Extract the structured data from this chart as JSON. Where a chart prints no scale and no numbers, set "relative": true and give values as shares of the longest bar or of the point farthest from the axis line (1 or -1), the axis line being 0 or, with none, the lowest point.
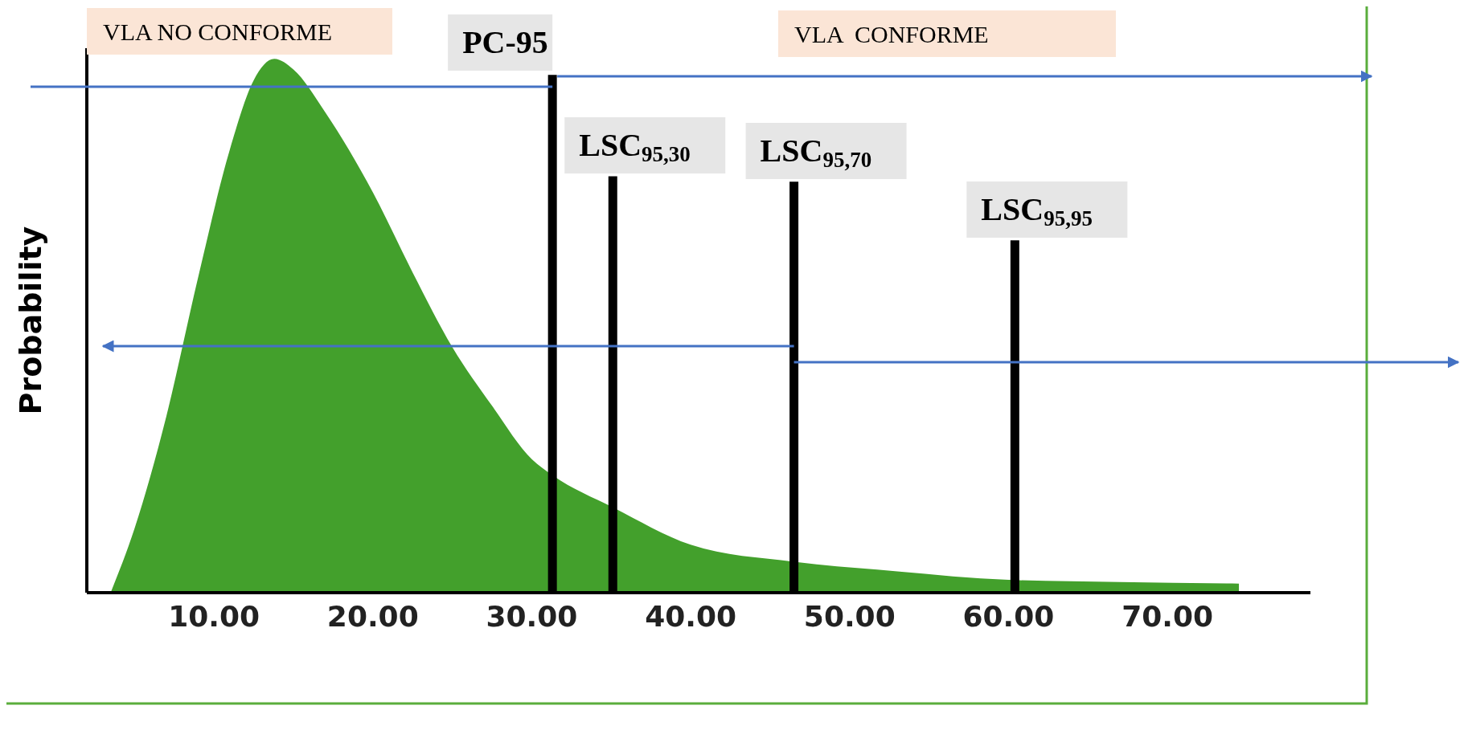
{
  "chart_data": {
    "type": "area",
    "relative": true,
    "ylabel": "Probability",
    "x": [
      3.5,
      5,
      7,
      9,
      11,
      12.5,
      13.8,
      15,
      17,
      20,
      22.5,
      25,
      27.5,
      30,
      31.3,
      35.1,
      40,
      46.5,
      53,
      60,
      67,
      74.5
    ],
    "series": [
      {
        "color": "#43a02c",
        "values": [
          0,
          0.12,
          0.33,
          0.59,
          0.83,
          0.96,
          1,
          0.98,
          0.9,
          0.75,
          0.6,
          0.46,
          0.35,
          0.25,
          0.22,
          0.16,
          0.09,
          0.058,
          0.04,
          0.024,
          0.02,
          0.017
        ]
      }
    ],
    "xlim": [
      2,
      79
    ],
    "xticks": [
      {
        "value": 10,
        "label": "10.00"
      },
      {
        "value": 20,
        "label": "20.00"
      },
      {
        "value": 30,
        "label": "30.00"
      },
      {
        "value": 40,
        "label": "40.00"
      },
      {
        "value": 50,
        "label": "50.00"
      },
      {
        "value": 60,
        "label": "60.00"
      },
      {
        "value": 70,
        "label": "70.00"
      }
    ],
    "ref_lines": [
      {
        "axis": "x",
        "value": 31.3,
        "label": "PC-95",
        "color": "#000000"
      },
      {
        "axis": "x",
        "value": 35.1,
        "label": "LSC$_{95,30}$",
        "color": "#000000"
      },
      {
        "axis": "x",
        "value": 46.5,
        "label": "LSC$_{95,70}$",
        "color": "#000000"
      },
      {
        "axis": "x",
        "value": 60.4,
        "label": "LSC$_{95,95}$",
        "color": "#000000"
      }
    ],
    "annotations": [
      "VLA NO CONFORME",
      "VLA  CONFORME"
    ]
  }
}
